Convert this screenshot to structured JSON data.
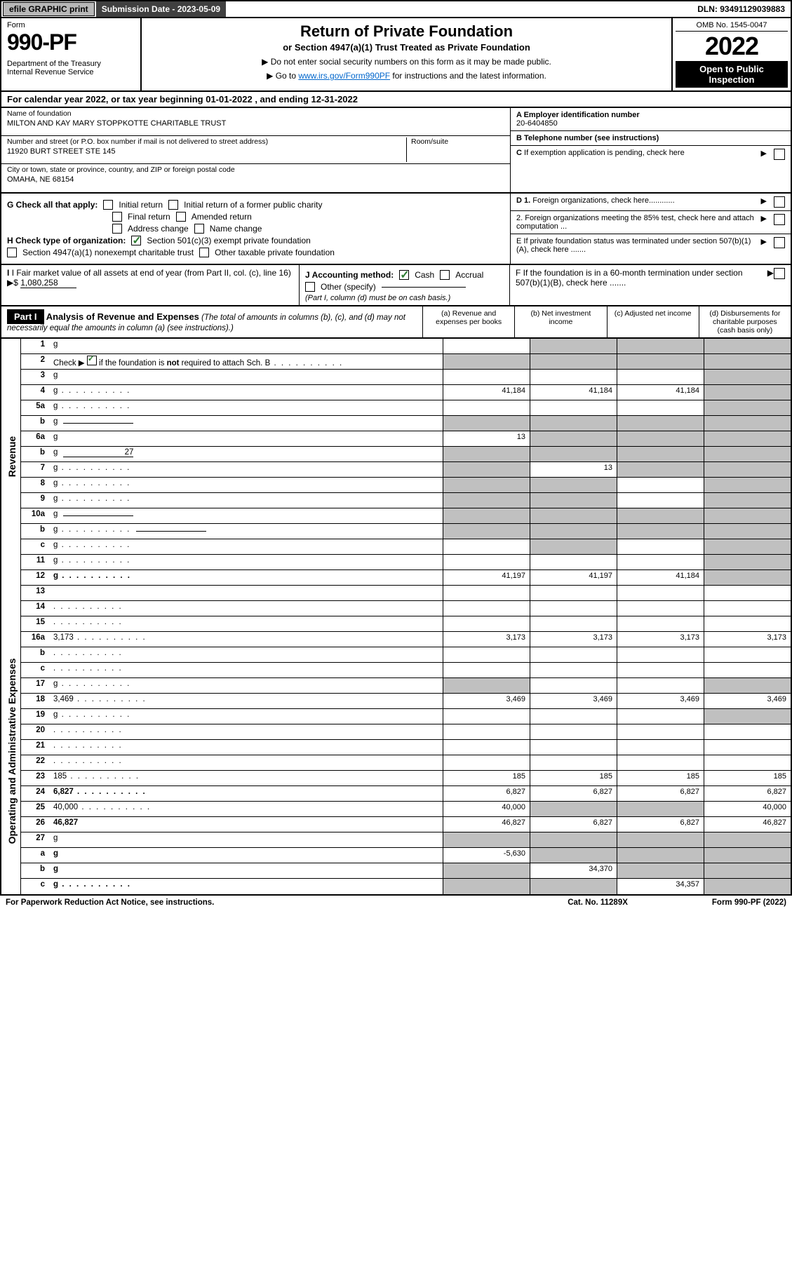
{
  "colors": {
    "text": "#000000",
    "bg": "#ffffff",
    "grey_btn": "#b8b8b8",
    "dark_bar": "#404040",
    "link": "#0066cc",
    "check_green": "#2e7d32",
    "cell_grey": "#c0c0c0",
    "black": "#000000"
  },
  "topbar": {
    "efile": "efile GRAPHIC print",
    "sub_label": "Submission Date - 2023-05-09",
    "dln": "DLN: 93491129039883"
  },
  "header": {
    "form_label": "Form",
    "form_num": "990-PF",
    "dept": "Department of the Treasury\nInternal Revenue Service",
    "title": "Return of Private Foundation",
    "subtitle": "or Section 4947(a)(1) Trust Treated as Private Foundation",
    "note1": "▶ Do not enter social security numbers on this form as it may be made public.",
    "note2_pre": "▶ Go to ",
    "note2_link": "www.irs.gov/Form990PF",
    "note2_post": " for instructions and the latest information.",
    "omb": "OMB No. 1545-0047",
    "year": "2022",
    "open": "Open to Public Inspection"
  },
  "calyear": "For calendar year 2022, or tax year beginning 01-01-2022                         , and ending 12-31-2022",
  "info": {
    "name_label": "Name of foundation",
    "name": "MILTON AND KAY MARY STOPPKOTTE CHARITABLE TRUST",
    "addr_label": "Number and street (or P.O. box number if mail is not delivered to street address)",
    "addr": "11920 BURT STREET STE 145",
    "room_label": "Room/suite",
    "city_label": "City or town, state or province, country, and ZIP or foreign postal code",
    "city": "OMAHA, NE  68154",
    "a_label": "A Employer identification number",
    "a_val": "20-6404850",
    "b_label": "B Telephone number (see instructions)",
    "c_label": "C If exemption application is pending, check here",
    "d1": "D 1. Foreign organizations, check here............",
    "d2": "2. Foreign organizations meeting the 85% test, check here and attach computation ...",
    "e_label": "E  If private foundation status was terminated under section 507(b)(1)(A), check here .......",
    "f_label": "F  If the foundation is in a 60-month termination under section 507(b)(1)(B), check here .......",
    "g_label": "G Check all that apply:",
    "g_opts": [
      "Initial return",
      "Initial return of a former public charity",
      "Final return",
      "Amended return",
      "Address change",
      "Name change"
    ],
    "h_label": "H Check type of organization:",
    "h_opts": [
      "Section 501(c)(3) exempt private foundation",
      "Section 4947(a)(1) nonexempt charitable trust",
      "Other taxable private foundation"
    ],
    "i_label": "I Fair market value of all assets at end of year (from Part II, col. (c), line 16)",
    "i_val": "1,080,258",
    "j_label": "J Accounting method:",
    "j_opts": [
      "Cash",
      "Accrual",
      "Other (specify)"
    ],
    "j_note": "(Part I, column (d) must be on cash basis.)"
  },
  "part1": {
    "badge": "Part I",
    "title": "Analysis of Revenue and Expenses",
    "title_note": "(The total of amounts in columns (b), (c), and (d) may not necessarily equal the amounts in column (a) (see instructions).)",
    "cols": {
      "a": "(a)   Revenue and expenses per books",
      "b": "(b)   Net investment income",
      "c": "(c)   Adjusted net income",
      "d": "(d)   Disbursements for charitable purposes (cash basis only)"
    }
  },
  "side_labels": {
    "rev": "Revenue",
    "exp": "Operating and Administrative Expenses"
  },
  "rows": [
    {
      "n": "1",
      "d": "g",
      "a": "",
      "b": "g",
      "c": "g",
      "sec": "rev"
    },
    {
      "n": "2",
      "d": "g",
      "a": "g",
      "b": "g",
      "c": "g",
      "sec": "rev",
      "dots": true,
      "check": true
    },
    {
      "n": "3",
      "d": "g",
      "a": "",
      "b": "",
      "c": "",
      "sec": "rev"
    },
    {
      "n": "4",
      "d": "g",
      "a": "41,184",
      "b": "41,184",
      "c": "41,184",
      "sec": "rev",
      "dots": true
    },
    {
      "n": "5a",
      "d": "g",
      "a": "",
      "b": "",
      "c": "",
      "sec": "rev",
      "dots": true
    },
    {
      "n": "b",
      "d": "g",
      "a": "g",
      "b": "g",
      "c": "g",
      "sec": "rev",
      "inline": true
    },
    {
      "n": "6a",
      "d": "g",
      "a": "13",
      "b": "g",
      "c": "g",
      "sec": "rev"
    },
    {
      "n": "b",
      "d": "g",
      "a": "g",
      "b": "g",
      "c": "g",
      "sec": "rev",
      "inline": true,
      "inlineval": "27"
    },
    {
      "n": "7",
      "d": "g",
      "a": "g",
      "b": "13",
      "c": "g",
      "sec": "rev",
      "dots": true
    },
    {
      "n": "8",
      "d": "g",
      "a": "g",
      "b": "g",
      "c": "",
      "sec": "rev",
      "dots": true
    },
    {
      "n": "9",
      "d": "g",
      "a": "g",
      "b": "g",
      "c": "",
      "sec": "rev",
      "dots": true
    },
    {
      "n": "10a",
      "d": "g",
      "a": "g",
      "b": "g",
      "c": "g",
      "sec": "rev",
      "inline": true
    },
    {
      "n": "b",
      "d": "g",
      "a": "g",
      "b": "g",
      "c": "g",
      "sec": "rev",
      "inline": true,
      "dots": true
    },
    {
      "n": "c",
      "d": "g",
      "a": "",
      "b": "g",
      "c": "",
      "sec": "rev",
      "dots": true
    },
    {
      "n": "11",
      "d": "g",
      "a": "",
      "b": "",
      "c": "",
      "sec": "rev",
      "dots": true
    },
    {
      "n": "12",
      "d": "g",
      "a": "41,197",
      "b": "41,197",
      "c": "41,184",
      "sec": "rev",
      "dots": true,
      "bold": true
    },
    {
      "n": "13",
      "d": "",
      "a": "",
      "b": "",
      "c": "",
      "sec": "exp"
    },
    {
      "n": "14",
      "d": "",
      "a": "",
      "b": "",
      "c": "",
      "sec": "exp",
      "dots": true
    },
    {
      "n": "15",
      "d": "",
      "a": "",
      "b": "",
      "c": "",
      "sec": "exp",
      "dots": true
    },
    {
      "n": "16a",
      "d": "3,173",
      "a": "3,173",
      "b": "3,173",
      "c": "3,173",
      "sec": "exp",
      "dots": true
    },
    {
      "n": "b",
      "d": "",
      "a": "",
      "b": "",
      "c": "",
      "sec": "exp",
      "dots": true
    },
    {
      "n": "c",
      "d": "",
      "a": "",
      "b": "",
      "c": "",
      "sec": "exp",
      "dots": true
    },
    {
      "n": "17",
      "d": "g",
      "a": "g",
      "b": "",
      "c": "",
      "sec": "exp",
      "dots": true
    },
    {
      "n": "18",
      "d": "3,469",
      "a": "3,469",
      "b": "3,469",
      "c": "3,469",
      "sec": "exp",
      "dots": true
    },
    {
      "n": "19",
      "d": "g",
      "a": "",
      "b": "",
      "c": "",
      "sec": "exp",
      "dots": true
    },
    {
      "n": "20",
      "d": "",
      "a": "",
      "b": "",
      "c": "",
      "sec": "exp",
      "dots": true
    },
    {
      "n": "21",
      "d": "",
      "a": "",
      "b": "",
      "c": "",
      "sec": "exp",
      "dots": true
    },
    {
      "n": "22",
      "d": "",
      "a": "",
      "b": "",
      "c": "",
      "sec": "exp",
      "dots": true
    },
    {
      "n": "23",
      "d": "185",
      "a": "185",
      "b": "185",
      "c": "185",
      "sec": "exp",
      "dots": true
    },
    {
      "n": "24",
      "d": "6,827",
      "a": "6,827",
      "b": "6,827",
      "c": "6,827",
      "sec": "exp",
      "dots": true,
      "bold": true
    },
    {
      "n": "25",
      "d": "40,000",
      "a": "40,000",
      "b": "g",
      "c": "g",
      "sec": "exp",
      "dots": true
    },
    {
      "n": "26",
      "d": "46,827",
      "a": "46,827",
      "b": "6,827",
      "c": "6,827",
      "sec": "exp",
      "bold": true
    },
    {
      "n": "27",
      "d": "g",
      "a": "g",
      "b": "g",
      "c": "g",
      "sec": "bot"
    },
    {
      "n": "a",
      "d": "g",
      "a": "-5,630",
      "b": "g",
      "c": "g",
      "sec": "bot",
      "bold": true
    },
    {
      "n": "b",
      "d": "g",
      "a": "g",
      "b": "34,370",
      "c": "g",
      "sec": "bot",
      "bold": true
    },
    {
      "n": "c",
      "d": "g",
      "a": "g",
      "b": "g",
      "c": "34,357",
      "sec": "bot",
      "bold": true,
      "dots": true
    }
  ],
  "footer": {
    "left": "For Paperwork Reduction Act Notice, see instructions.",
    "mid": "Cat. No. 11289X",
    "right": "Form 990-PF (2022)"
  }
}
